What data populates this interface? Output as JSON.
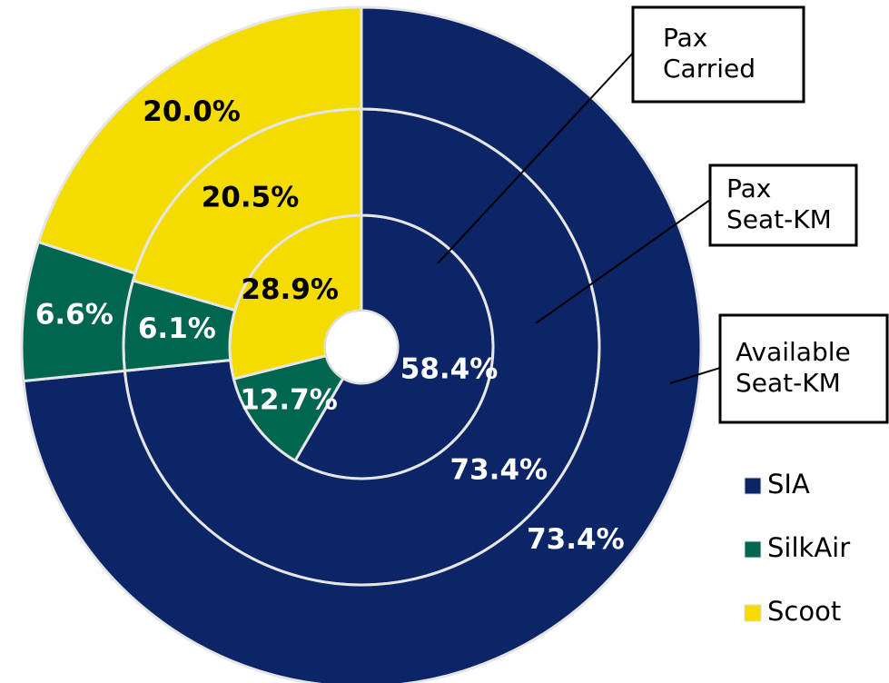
{
  "chart_data": {
    "type": "donut",
    "categories": [
      "SIA",
      "SilkAir",
      "Scoot"
    ],
    "colors": [
      "#0b2566",
      "#00664f",
      "#f5dc00"
    ],
    "label_colors": [
      "#ffffff",
      "#ffffff",
      "#000000"
    ],
    "rings": [
      {
        "name": "Pax Carried",
        "values": [
          58.4,
          12.7,
          28.9
        ],
        "value_labels": [
          "58.4%",
          "12.7%",
          "28.9%"
        ]
      },
      {
        "name": "Pax Seat-KM",
        "values": [
          73.4,
          6.1,
          20.5
        ],
        "value_labels": [
          "73.4%",
          "6.1%",
          "20.5%"
        ]
      },
      {
        "name": "Available Seat-KM",
        "values": [
          73.4,
          6.6,
          20.0
        ],
        "value_labels": [
          "73.4%",
          "6.6%",
          "20.0%"
        ]
      }
    ]
  }
}
